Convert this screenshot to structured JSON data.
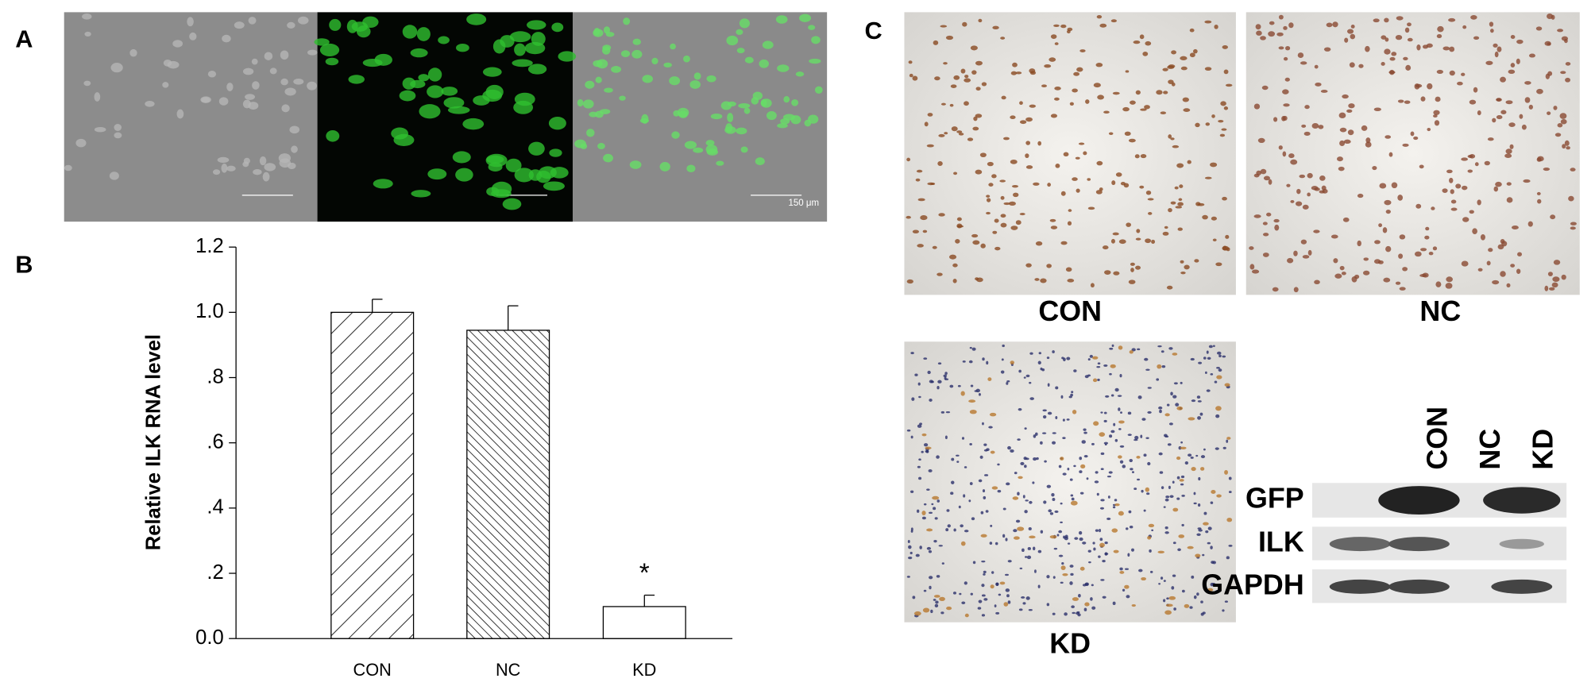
{
  "panel_labels": [
    "A",
    "B",
    "C"
  ],
  "fluorescence": {
    "scale_bar": "150 μm"
  },
  "chart_data": {
    "type": "bar",
    "ylabel": "Relative ILK RNA level",
    "categories": [
      "CON",
      "NC",
      "KD"
    ],
    "values": [
      1.0,
      0.945,
      0.098
    ],
    "errors": [
      0.04,
      0.075,
      0.035
    ],
    "annotations": [
      {
        "category": 2,
        "text": "*"
      }
    ],
    "ylim": [
      0,
      1.2
    ],
    "yticks": [
      {
        "value": 0,
        "label": "0.0"
      },
      {
        "value": 0.2,
        "label": ".2"
      },
      {
        "value": 0.4,
        "label": ".4"
      },
      {
        "value": 0.6,
        "label": ".6"
      },
      {
        "value": 0.8,
        "label": ".8"
      },
      {
        "value": 1.0,
        "label": "1.0"
      },
      1.2
    ],
    "grid": false
  },
  "micrographs": {
    "labels": [
      "CON",
      "NC",
      "KD"
    ]
  },
  "blot": {
    "lanes": [
      "CON",
      "NC",
      "KD"
    ],
    "proteins": [
      "GFP",
      "ILK",
      "GAPDH"
    ]
  }
}
